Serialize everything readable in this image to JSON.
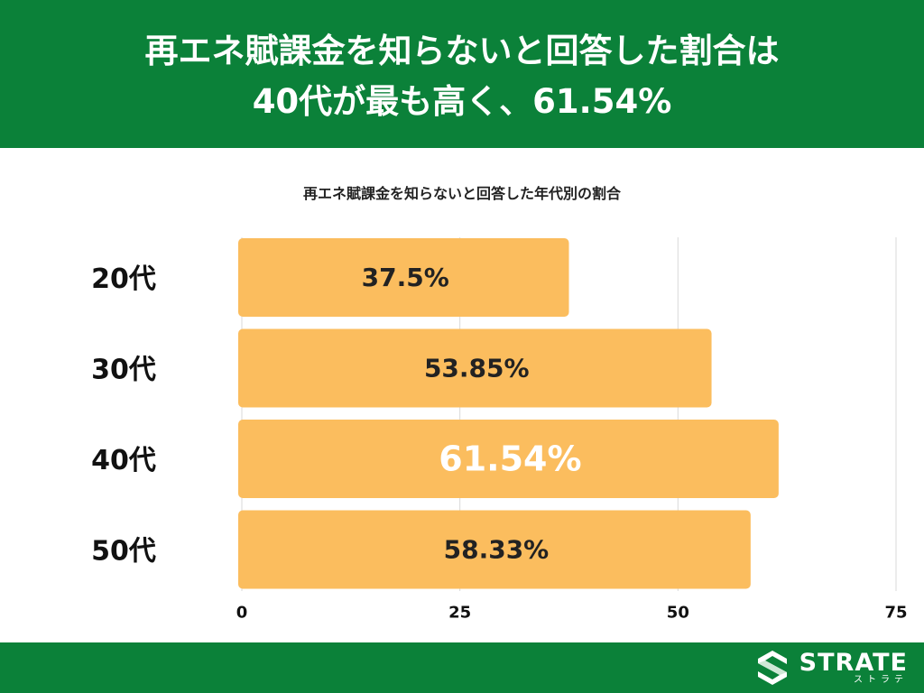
{
  "header": {
    "title_line1": "再エネ賦課金を知らないと回答した割合は",
    "title_line2": "40代が最も高く、61.54%"
  },
  "colors": {
    "header_green": "#0b8139",
    "bar": "#fbbd5e",
    "highlight_label": "#ffffff",
    "label": "#222222"
  },
  "chart_data": {
    "type": "bar",
    "orientation": "horizontal",
    "title": "再エネ賦課金を知らないと回答した年代別の割合",
    "categories": [
      "20代",
      "30代",
      "40代",
      "50代"
    ],
    "values": [
      37.5,
      53.85,
      61.54,
      58.33
    ],
    "data_labels": [
      "37.5%",
      "53.85%",
      "61.54%",
      "58.33%"
    ],
    "highlight": "40代",
    "xlim": [
      0,
      75
    ],
    "xticks": [
      0,
      25,
      50,
      75
    ],
    "grid": true,
    "legend": "none"
  },
  "footer": {
    "brand_name": "STRATE",
    "brand_sub": "ストラテ",
    "logo_icon": "strate-s-logo-icon"
  }
}
